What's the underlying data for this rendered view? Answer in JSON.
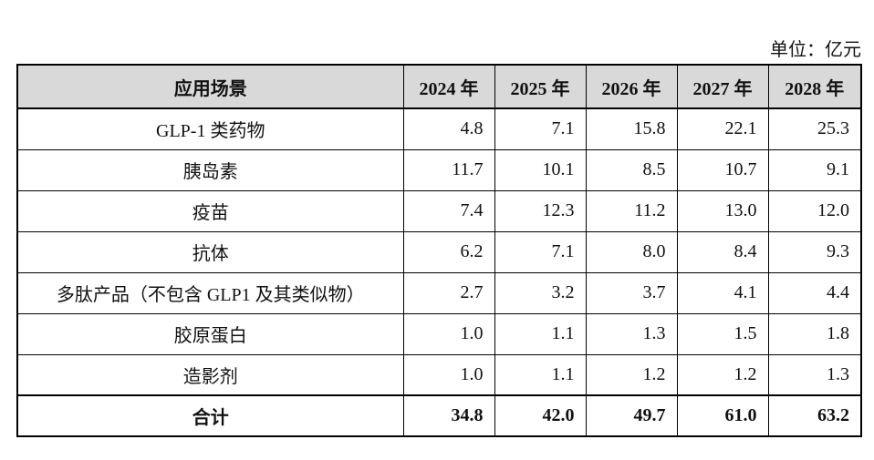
{
  "unit": "单位：亿元",
  "table": {
    "header": [
      "应用场景",
      "2024 年",
      "2025 年",
      "2026 年",
      "2027 年",
      "2028 年"
    ],
    "rows": [
      [
        "GLP-1 类药物",
        "4.8",
        "7.1",
        "15.8",
        "22.1",
        "25.3"
      ],
      [
        "胰岛素",
        "11.7",
        "10.1",
        "8.5",
        "10.7",
        "9.1"
      ],
      [
        "疫苗",
        "7.4",
        "12.3",
        "11.2",
        "13.0",
        "12.0"
      ],
      [
        "抗体",
        "6.2",
        "7.1",
        "8.0",
        "8.4",
        "9.3"
      ],
      [
        "多肽产品（不包含 GLP1 及其类似物）",
        "2.7",
        "3.2",
        "3.7",
        "4.1",
        "4.4"
      ],
      [
        "胶原蛋白",
        "1.0",
        "1.1",
        "1.3",
        "1.5",
        "1.8"
      ],
      [
        "造影剂",
        "1.0",
        "1.1",
        "1.2",
        "1.2",
        "1.3"
      ]
    ],
    "total": [
      "合计",
      "34.8",
      "42.0",
      "49.7",
      "61.0",
      "63.2"
    ]
  }
}
